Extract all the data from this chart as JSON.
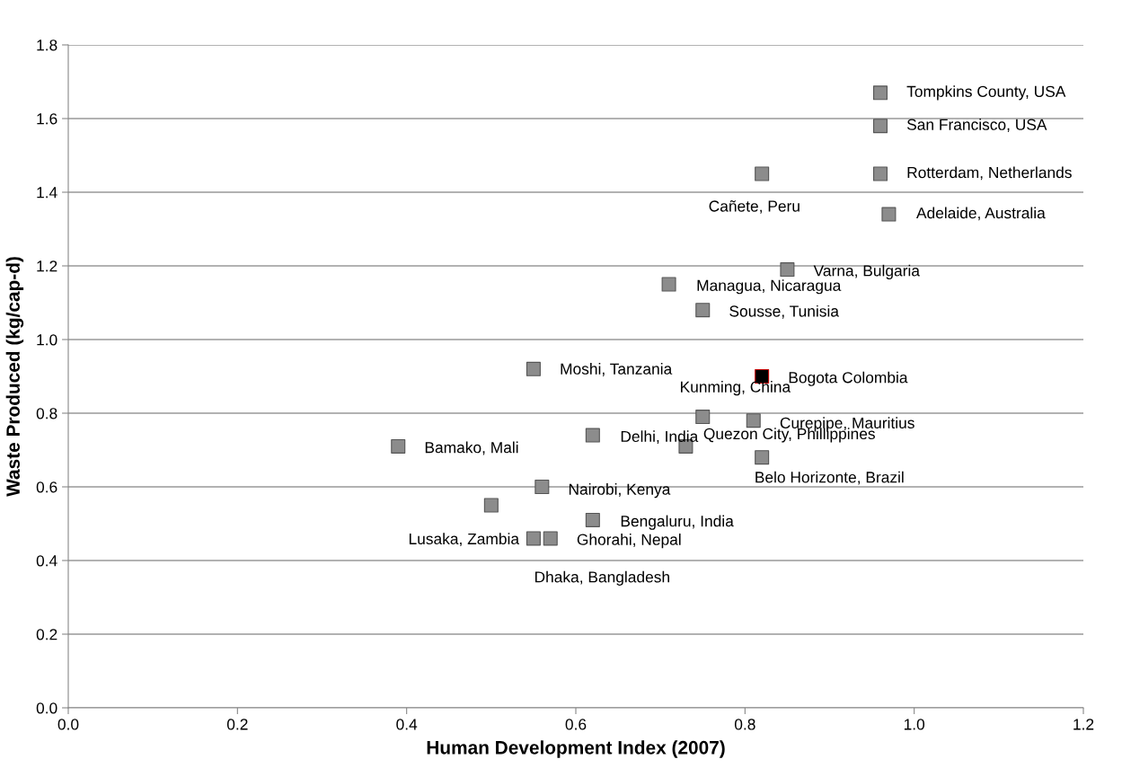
{
  "chart_data": {
    "type": "scatter",
    "xlabel": "Human Development Index (2007)",
    "ylabel": "Waste Produced (kg/cap-d)",
    "x": [
      0.96,
      0.96,
      0.96,
      0.82,
      0.97,
      0.85,
      0.71,
      0.75,
      0.55,
      0.82,
      0.75,
      0.81,
      0.62,
      0.73,
      0.39,
      0.82,
      0.56,
      0.5,
      0.62,
      0.55,
      0.57
    ],
    "values": [
      1.67,
      1.58,
      1.45,
      1.45,
      1.34,
      1.19,
      1.15,
      1.08,
      0.92,
      0.9,
      0.79,
      0.78,
      0.74,
      0.71,
      0.71,
      0.68,
      0.6,
      0.55,
      0.51,
      0.46,
      0.46
    ],
    "colors": [
      "#8c8c8c",
      "#8c8c8c",
      "#8c8c8c",
      "#8c8c8c",
      "#8c8c8c",
      "#8c8c8c",
      "#8c8c8c",
      "#8c8c8c",
      "#8c8c8c",
      "#000000",
      "#8c8c8c",
      "#8c8c8c",
      "#8c8c8c",
      "#8c8c8c",
      "#8c8c8c",
      "#8c8c8c",
      "#8c8c8c",
      "#8c8c8c",
      "#8c8c8c",
      "#8c8c8c",
      "#8c8c8c"
    ],
    "marker": "square",
    "annotations": [
      {
        "text": "Tompkins County, USA",
        "x": 0.96,
        "y": 1.67
      },
      {
        "text": "San Francisco, USA",
        "x": 0.96,
        "y": 1.58
      },
      {
        "text": "Rotterdam, Netherlands",
        "x": 0.96,
        "y": 1.45
      },
      {
        "text": "Cañete, Peru",
        "x": 0.82,
        "y": 1.45
      },
      {
        "text": "Adelaide, Australia",
        "x": 0.97,
        "y": 1.34
      },
      {
        "text": "Varna, Bulgaria",
        "x": 0.85,
        "y": 1.19
      },
      {
        "text": "Managua, Nicaragua",
        "x": 0.71,
        "y": 1.15
      },
      {
        "text": "Sousse, Tunisia",
        "x": 0.75,
        "y": 1.08
      },
      {
        "text": "Moshi, Tanzania",
        "x": 0.55,
        "y": 0.92
      },
      {
        "text": "Bogota Colombia",
        "x": 0.82,
        "y": 0.9
      },
      {
        "text": "Kunming, China",
        "x": 0.75,
        "y": 0.79
      },
      {
        "text": "Curepipe, Mauritius",
        "x": 0.81,
        "y": 0.78
      },
      {
        "text": "Delhi, India",
        "x": 0.62,
        "y": 0.74
      },
      {
        "text": "Quezon City, Phillippines",
        "x": 0.73,
        "y": 0.71
      },
      {
        "text": "Bamako, Mali",
        "x": 0.39,
        "y": 0.71
      },
      {
        "text": "Belo Horizonte, Brazil",
        "x": 0.82,
        "y": 0.68
      },
      {
        "text": "Nairobi, Kenya",
        "x": 0.56,
        "y": 0.6
      },
      {
        "text": "Lusaka, Zambia",
        "x": 0.5,
        "y": 0.55
      },
      {
        "text": "Bengaluru, India",
        "x": 0.62,
        "y": 0.51
      },
      {
        "text": "Dhaka, Bangladesh",
        "x": 0.55,
        "y": 0.46
      },
      {
        "text": "Ghorahi, Nepal",
        "x": 0.57,
        "y": 0.46
      }
    ],
    "xlim": [
      0,
      1.2
    ],
    "xticks": [
      {
        "value": 0,
        "label": "0.0"
      },
      0.2,
      0.4,
      0.6,
      0.8,
      {
        "value": 1,
        "label": "1.0"
      },
      {
        "value": 1.2,
        "label": "1.2"
      }
    ],
    "ylim": [
      0,
      1.8
    ],
    "yticks": [
      {
        "value": 0,
        "label": "0.0"
      },
      0.2,
      0.4,
      0.6,
      0.8,
      {
        "value": 1,
        "label": "1.0"
      },
      1.2,
      1.4,
      1.6,
      1.8
    ],
    "grid": "y",
    "legend": false
  }
}
